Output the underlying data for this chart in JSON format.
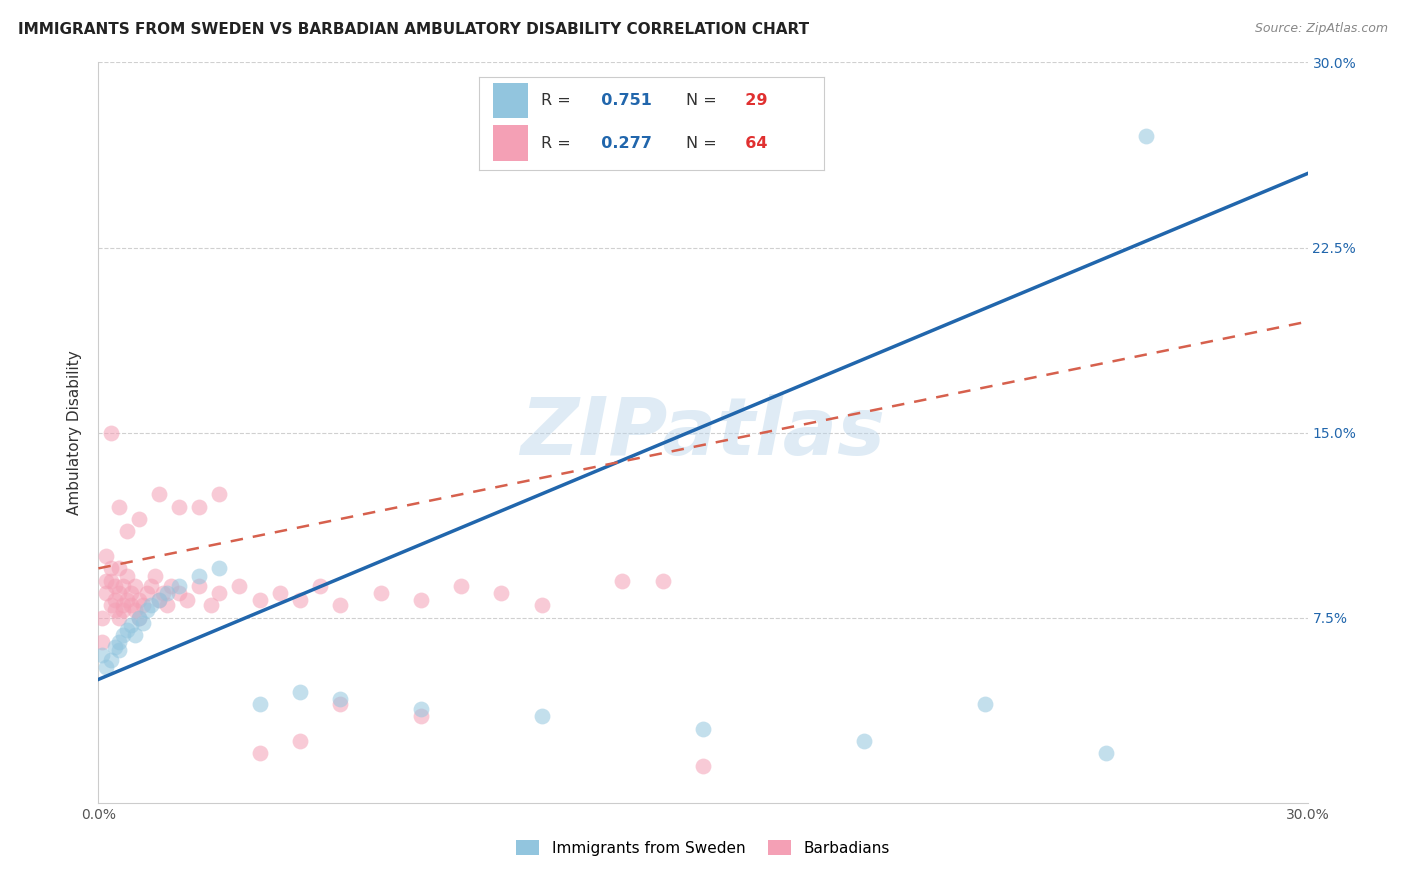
{
  "title": "IMMIGRANTS FROM SWEDEN VS BARBADIAN AMBULATORY DISABILITY CORRELATION CHART",
  "source": "Source: ZipAtlas.com",
  "ylabel": "Ambulatory Disability",
  "xlim": [
    0.0,
    0.3
  ],
  "ylim": [
    0.0,
    0.3
  ],
  "color_blue": "#92c5de",
  "color_pink": "#f4a0b5",
  "line_blue": "#2166ac",
  "line_pink": "#d6604d",
  "watermark": "ZIPatlas",
  "grid_color": "#d0d0d0",
  "r_blue": 0.751,
  "n_blue": 29,
  "r_pink": 0.277,
  "n_pink": 64,
  "blue_line_x0": 0.0,
  "blue_line_y0": 0.05,
  "blue_line_x1": 0.3,
  "blue_line_y1": 0.255,
  "pink_line_x0": 0.0,
  "pink_line_y0": 0.095,
  "pink_line_x1": 0.3,
  "pink_line_y1": 0.195,
  "sweden_x": [
    0.001,
    0.002,
    0.003,
    0.004,
    0.005,
    0.005,
    0.006,
    0.007,
    0.008,
    0.009,
    0.01,
    0.011,
    0.012,
    0.013,
    0.015,
    0.017,
    0.02,
    0.025,
    0.03,
    0.04,
    0.05,
    0.06,
    0.08,
    0.11,
    0.15,
    0.19,
    0.22,
    0.25,
    0.26
  ],
  "sweden_y": [
    0.06,
    0.055,
    0.058,
    0.063,
    0.065,
    0.062,
    0.068,
    0.07,
    0.072,
    0.068,
    0.075,
    0.073,
    0.078,
    0.08,
    0.082,
    0.085,
    0.088,
    0.092,
    0.095,
    0.04,
    0.045,
    0.042,
    0.038,
    0.035,
    0.03,
    0.025,
    0.04,
    0.02,
    0.27
  ],
  "barbados_x": [
    0.001,
    0.001,
    0.002,
    0.002,
    0.002,
    0.003,
    0.003,
    0.003,
    0.004,
    0.004,
    0.004,
    0.005,
    0.005,
    0.005,
    0.006,
    0.006,
    0.006,
    0.007,
    0.007,
    0.008,
    0.008,
    0.009,
    0.009,
    0.01,
    0.01,
    0.011,
    0.012,
    0.013,
    0.014,
    0.015,
    0.016,
    0.017,
    0.018,
    0.02,
    0.022,
    0.025,
    0.028,
    0.03,
    0.035,
    0.04,
    0.045,
    0.05,
    0.055,
    0.06,
    0.07,
    0.08,
    0.09,
    0.1,
    0.11,
    0.13,
    0.003,
    0.005,
    0.007,
    0.01,
    0.015,
    0.02,
    0.025,
    0.03,
    0.04,
    0.05,
    0.06,
    0.08,
    0.14,
    0.15
  ],
  "barbados_y": [
    0.065,
    0.075,
    0.09,
    0.085,
    0.1,
    0.08,
    0.09,
    0.095,
    0.082,
    0.088,
    0.078,
    0.075,
    0.085,
    0.095,
    0.08,
    0.088,
    0.078,
    0.082,
    0.092,
    0.08,
    0.085,
    0.078,
    0.088,
    0.082,
    0.075,
    0.08,
    0.085,
    0.088,
    0.092,
    0.082,
    0.085,
    0.08,
    0.088,
    0.085,
    0.082,
    0.088,
    0.08,
    0.085,
    0.088,
    0.082,
    0.085,
    0.082,
    0.088,
    0.08,
    0.085,
    0.082,
    0.088,
    0.085,
    0.08,
    0.09,
    0.15,
    0.12,
    0.11,
    0.115,
    0.125,
    0.12,
    0.12,
    0.125,
    0.02,
    0.025,
    0.04,
    0.035,
    0.09,
    0.015
  ]
}
